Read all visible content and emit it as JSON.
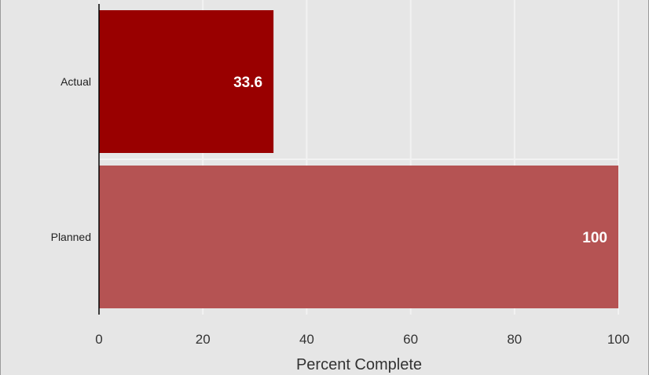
{
  "chart_data": {
    "type": "bar",
    "orientation": "horizontal",
    "categories": [
      "Actual",
      "Planned"
    ],
    "values": [
      33.6,
      100
    ],
    "data_labels": [
      "33.6",
      "100"
    ],
    "xlabel": "Percent Complete",
    "ylabel": "",
    "xlim": [
      0,
      100
    ],
    "x_ticks": [
      "0",
      "20",
      "40",
      "60",
      "80",
      "100"
    ],
    "grid": true,
    "colors": {
      "Actual": "#990000",
      "Planned": "#b55353",
      "background": "#e6e6e6",
      "grid": "#f2f2f2"
    }
  }
}
